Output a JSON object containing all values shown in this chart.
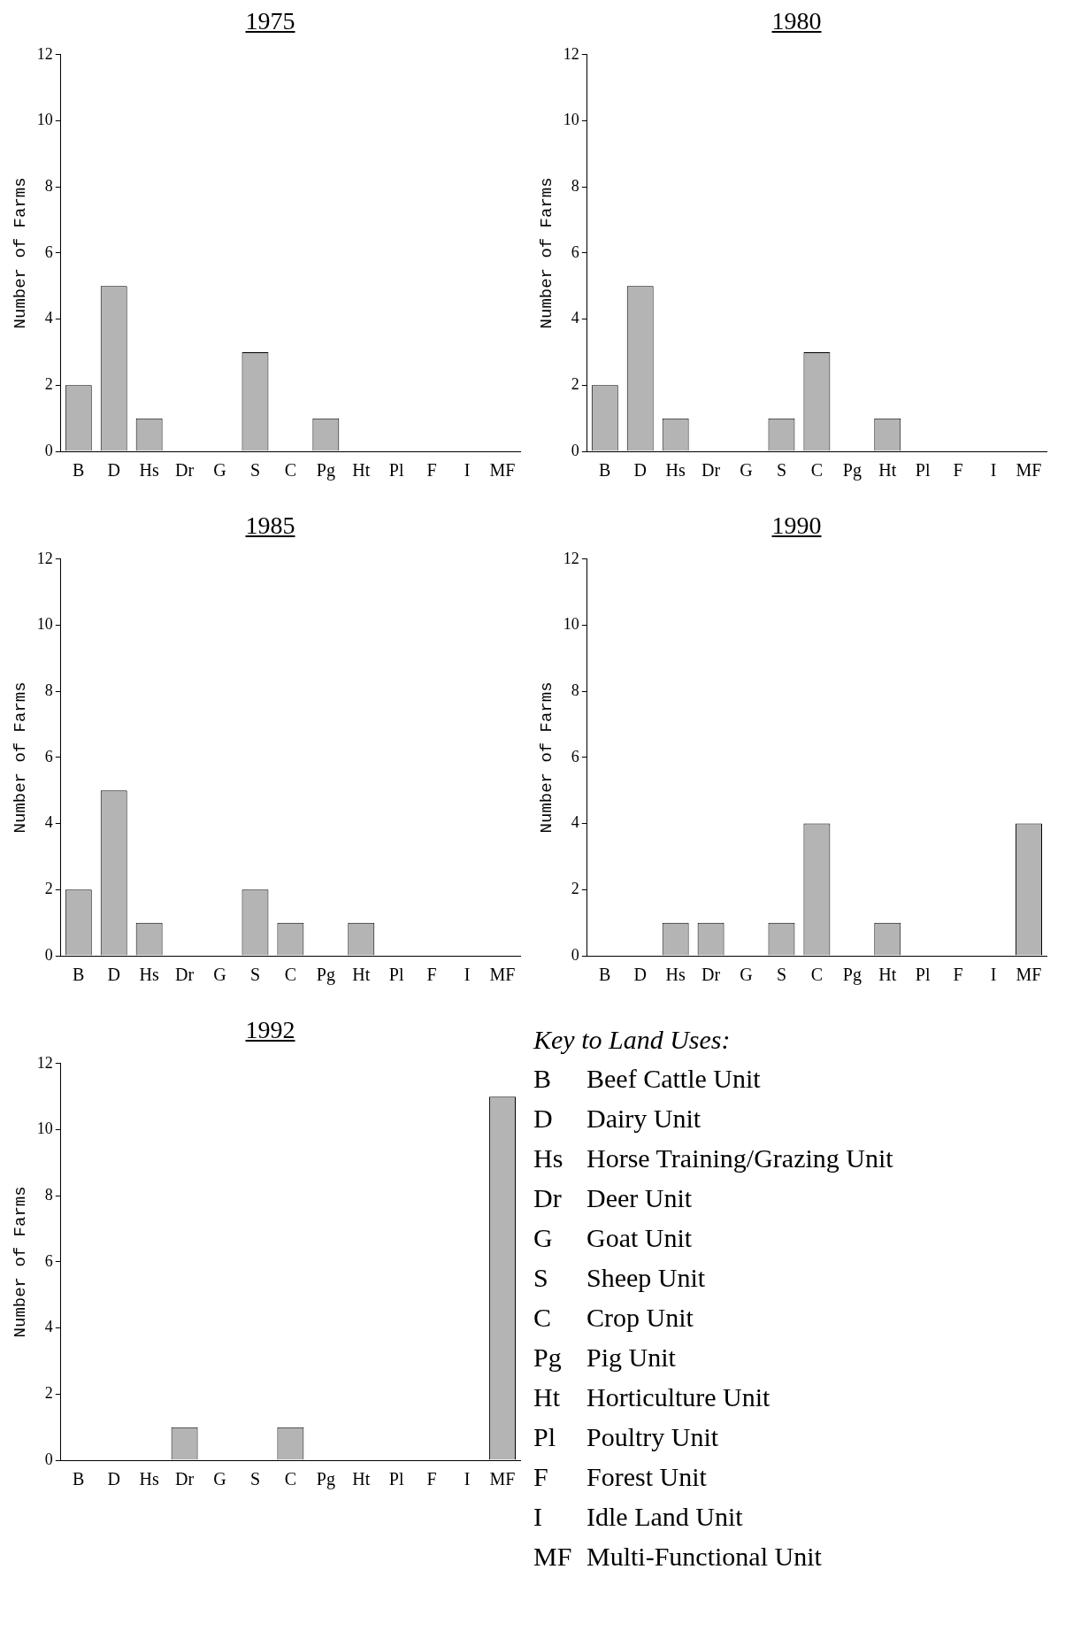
{
  "chart_data": [
    {
      "type": "bar",
      "title": "1975",
      "ylabel": "Number of Farms",
      "categories": [
        "B",
        "D",
        "Hs",
        "Dr",
        "G",
        "S",
        "C",
        "Pg",
        "Ht",
        "Pl",
        "F",
        "I",
        "MF"
      ],
      "values": [
        2,
        5,
        1,
        0,
        0,
        3,
        0,
        1,
        0,
        0,
        0,
        0,
        0
      ],
      "color": "#b4b4b4",
      "ylim": [
        0,
        12
      ],
      "yticks": [
        0,
        2,
        4,
        6,
        8,
        10,
        12
      ]
    },
    {
      "type": "bar",
      "title": "1980",
      "ylabel": "Number of Farms",
      "categories": [
        "B",
        "D",
        "Hs",
        "Dr",
        "G",
        "S",
        "C",
        "Pg",
        "Ht",
        "Pl",
        "F",
        "I",
        "MF"
      ],
      "values": [
        2,
        5,
        1,
        0,
        0,
        1,
        3,
        0,
        1,
        0,
        0,
        0,
        0
      ],
      "color": "#b4b4b4",
      "ylim": [
        0,
        12
      ],
      "yticks": [
        0,
        2,
        4,
        6,
        8,
        10,
        12
      ]
    },
    {
      "type": "bar",
      "title": "1985",
      "ylabel": "Number of Farms",
      "categories": [
        "B",
        "D",
        "Hs",
        "Dr",
        "G",
        "S",
        "C",
        "Pg",
        "Ht",
        "Pl",
        "F",
        "I",
        "MF"
      ],
      "values": [
        2,
        5,
        1,
        0,
        0,
        2,
        1,
        0,
        1,
        0,
        0,
        0,
        0
      ],
      "color": "#b4b4b4",
      "ylim": [
        0,
        12
      ],
      "yticks": [
        0,
        2,
        4,
        6,
        8,
        10,
        12
      ]
    },
    {
      "type": "bar",
      "title": "1990",
      "ylabel": "Number of Farms",
      "categories": [
        "B",
        "D",
        "Hs",
        "Dr",
        "G",
        "S",
        "C",
        "Pg",
        "Ht",
        "Pl",
        "F",
        "I",
        "MF"
      ],
      "values": [
        0,
        0,
        1,
        1,
        0,
        1,
        4,
        0,
        1,
        0,
        0,
        0,
        4
      ],
      "color": "#b4b4b4",
      "ylim": [
        0,
        12
      ],
      "yticks": [
        0,
        2,
        4,
        6,
        8,
        10,
        12
      ]
    },
    {
      "type": "bar",
      "title": "1992",
      "ylabel": "Number of Farms",
      "categories": [
        "B",
        "D",
        "Hs",
        "Dr",
        "G",
        "S",
        "C",
        "Pg",
        "Ht",
        "Pl",
        "F",
        "I",
        "MF"
      ],
      "values": [
        0,
        0,
        0,
        1,
        0,
        0,
        1,
        0,
        0,
        0,
        0,
        0,
        11
      ],
      "color": "#b4b4b4",
      "ylim": [
        0,
        12
      ],
      "yticks": [
        0,
        2,
        4,
        6,
        8,
        10,
        12
      ]
    },
    {
      "type": "other",
      "title": "Key to Land Uses:",
      "annotations": [
        "B Beef Cattle Unit",
        "D Dairy Unit",
        "Hs Horse Training/Grazing Unit",
        "Dr Deer Unit",
        "G Goat Unit",
        "S Sheep Unit",
        "C Crop Unit",
        "Pg Pig Unit",
        "Ht Horticulture Unit",
        "Pl Poultry Unit",
        "F Forest Unit",
        "I Idle Land Unit",
        "MF Multi-Functional Unit"
      ]
    }
  ]
}
